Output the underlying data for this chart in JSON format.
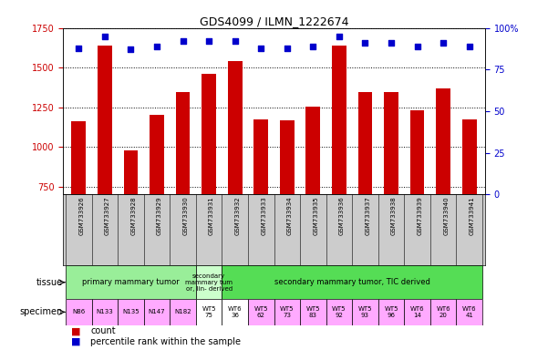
{
  "title": "GDS4099 / ILMN_1222674",
  "samples": [
    "GSM733926",
    "GSM733927",
    "GSM733928",
    "GSM733929",
    "GSM733930",
    "GSM733931",
    "GSM733932",
    "GSM733933",
    "GSM733934",
    "GSM733935",
    "GSM733936",
    "GSM733937",
    "GSM733938",
    "GSM733939",
    "GSM733940",
    "GSM733941"
  ],
  "counts": [
    1163,
    1638,
    975,
    1200,
    1347,
    1462,
    1543,
    1175,
    1165,
    1253,
    1640,
    1347,
    1347,
    1230,
    1370,
    1175
  ],
  "percentiles": [
    88,
    95,
    87,
    89,
    92,
    92,
    92,
    88,
    88,
    89,
    95,
    91,
    91,
    89,
    91,
    89
  ],
  "ylim_left": [
    700,
    1750
  ],
  "ylim_right": [
    0,
    100
  ],
  "yticks_left": [
    750,
    1000,
    1250,
    1500,
    1750
  ],
  "yticks_right": [
    0,
    25,
    50,
    75,
    100
  ],
  "bar_color": "#cc0000",
  "dot_color": "#0000cc",
  "xticklabel_bg": "#cccccc",
  "tissue_groups": [
    {
      "text": "primary mammary tumor",
      "start": 0,
      "end": 4,
      "color": "#99ee99"
    },
    {
      "text": "secondary\nmammary tum\nor, lin- derived",
      "start": 5,
      "end": 5,
      "color": "#ccffcc"
    },
    {
      "text": "secondary mammary tumor, TIC derived",
      "start": 6,
      "end": 15,
      "color": "#55dd55"
    }
  ],
  "specimen_data": [
    {
      "text": "N86",
      "col": 0,
      "color": "#ffaaff"
    },
    {
      "text": "N133",
      "col": 1,
      "color": "#ffaaff"
    },
    {
      "text": "N135",
      "col": 2,
      "color": "#ffaaff"
    },
    {
      "text": "N147",
      "col": 3,
      "color": "#ffaaff"
    },
    {
      "text": "N182",
      "col": 4,
      "color": "#ffaaff"
    },
    {
      "text": "WT5\n75",
      "col": 5,
      "color": "#ffffff"
    },
    {
      "text": "WT6\n36",
      "col": 6,
      "color": "#ffffff"
    },
    {
      "text": "WT5\n62",
      "col": 7,
      "color": "#ffaaff"
    },
    {
      "text": "WT5\n73",
      "col": 8,
      "color": "#ffaaff"
    },
    {
      "text": "WT5\n83",
      "col": 9,
      "color": "#ffaaff"
    },
    {
      "text": "WT5\n92",
      "col": 10,
      "color": "#ffaaff"
    },
    {
      "text": "WT5\n93",
      "col": 11,
      "color": "#ffaaff"
    },
    {
      "text": "WT5\n96",
      "col": 12,
      "color": "#ffaaff"
    },
    {
      "text": "WT6\n14",
      "col": 13,
      "color": "#ffaaff"
    },
    {
      "text": "WT6\n20",
      "col": 14,
      "color": "#ffaaff"
    },
    {
      "text": "WT6\n41",
      "col": 15,
      "color": "#ffaaff"
    }
  ],
  "legend_count_color": "#cc0000",
  "legend_pct_color": "#0000cc",
  "legend_count": "count",
  "legend_percentile": "percentile rank within the sample",
  "axis_left_color": "#cc0000",
  "axis_right_color": "#0000cc"
}
